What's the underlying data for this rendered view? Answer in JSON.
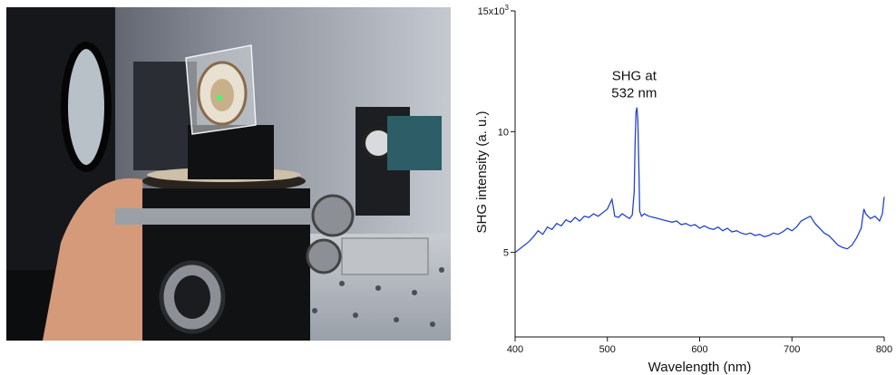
{
  "chart_data": {
    "type": "line",
    "xlabel": "Wavelength (nm)",
    "ylabel": "SHG intensity (a. u.)",
    "xlim": [
      400,
      800
    ],
    "ylim": [
      1500,
      15000
    ],
    "x_ticks": [
      400,
      500,
      600,
      700,
      800
    ],
    "y_ticks": [
      {
        "value": 5000,
        "label": "5"
      },
      {
        "value": 10000,
        "label": "10"
      },
      {
        "value": 15000,
        "label": "15x10",
        "superscript": "3"
      }
    ],
    "annotation": {
      "lines": [
        "SHG at",
        "532 nm"
      ],
      "x": 532
    },
    "grid": false,
    "line_color": "#2244cc",
    "series": [
      {
        "x": [
          400,
          405,
          410,
          415,
          420,
          425,
          430,
          435,
          440,
          445,
          450,
          455,
          460,
          465,
          470,
          475,
          480,
          485,
          490,
          495,
          500,
          505,
          508,
          512,
          516,
          520,
          524,
          527,
          529,
          530,
          531,
          532,
          533,
          534,
          535,
          537,
          540,
          545,
          550,
          555,
          560,
          565,
          570,
          575,
          580,
          585,
          590,
          595,
          600,
          605,
          610,
          615,
          620,
          625,
          630,
          635,
          640,
          645,
          650,
          655,
          660,
          665,
          670,
          675,
          680,
          685,
          690,
          695,
          700,
          705,
          710,
          715,
          720,
          725,
          730,
          735,
          740,
          745,
          750,
          755,
          760,
          765,
          770,
          775,
          778,
          780,
          785,
          790,
          795,
          798,
          800
        ],
        "y": [
          5000,
          5150,
          5300,
          5450,
          5650,
          5900,
          5750,
          6050,
          5950,
          6200,
          6100,
          6350,
          6250,
          6450,
          6300,
          6500,
          6450,
          6600,
          6500,
          6650,
          6800,
          7200,
          6500,
          6450,
          6600,
          6500,
          6400,
          6550,
          7500,
          9500,
          10800,
          11000,
          10500,
          8800,
          6700,
          6500,
          6600,
          6500,
          6450,
          6400,
          6350,
          6300,
          6250,
          6300,
          6150,
          6200,
          6100,
          6150,
          6000,
          6100,
          6000,
          5950,
          6050,
          5900,
          6000,
          5850,
          5900,
          5800,
          5750,
          5800,
          5700,
          5750,
          5650,
          5700,
          5800,
          5750,
          5850,
          6000,
          5900,
          6050,
          6300,
          6400,
          6500,
          6200,
          6000,
          5800,
          5700,
          5500,
          5300,
          5200,
          5150,
          5300,
          5600,
          6000,
          6800,
          6600,
          6400,
          6500,
          6300,
          6600,
          7300
        ]
      }
    ]
  }
}
